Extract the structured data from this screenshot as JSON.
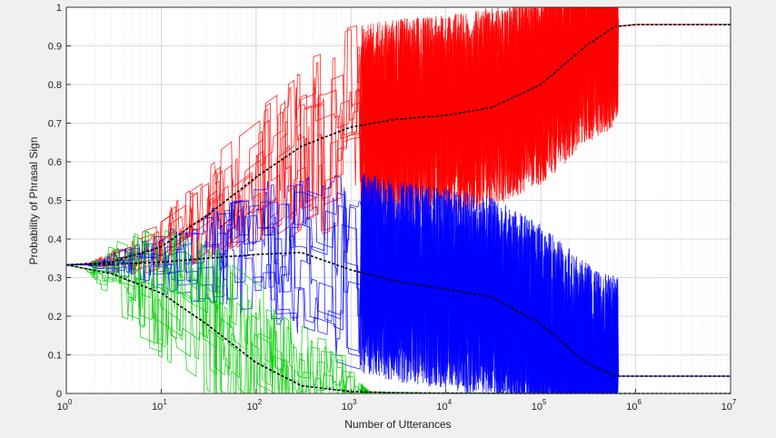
{
  "chart_data": {
    "type": "line",
    "title": "",
    "xlabel": "Number of Utterances",
    "ylabel": "Probability of Phrasal Sign",
    "xscale": "log",
    "xlim": [
      1,
      10000000
    ],
    "ylim": [
      0,
      1
    ],
    "grid": true,
    "legend": "none",
    "x_ticks": [
      {
        "base": "10",
        "exp": "0"
      },
      {
        "base": "10",
        "exp": "1"
      },
      {
        "base": "10",
        "exp": "2"
      },
      {
        "base": "10",
        "exp": "3"
      },
      {
        "base": "10",
        "exp": "4"
      },
      {
        "base": "10",
        "exp": "5"
      },
      {
        "base": "10",
        "exp": "6"
      },
      {
        "base": "10",
        "exp": "7"
      }
    ],
    "y_ticks": [
      "0",
      "0.1",
      "0.2",
      "0.3",
      "0.4",
      "0.5",
      "0.6",
      "0.7",
      "0.8",
      "0.9",
      "1"
    ],
    "series": [
      {
        "color": "#ff0000",
        "role": "mean",
        "x": [
          1,
          3,
          10,
          30,
          100,
          300,
          1000,
          3000,
          10000,
          30000,
          100000,
          300000,
          600000,
          1000000,
          10000000
        ],
        "y": [
          0.333,
          0.34,
          0.38,
          0.46,
          0.56,
          0.64,
          0.69,
          0.71,
          0.72,
          0.74,
          0.8,
          0.9,
          0.95,
          0.955,
          0.955
        ]
      },
      {
        "color": "#0000ff",
        "role": "mean",
        "x": [
          1,
          3,
          10,
          30,
          100,
          300,
          1000,
          3000,
          10000,
          30000,
          100000,
          300000,
          600000,
          1000000,
          10000000
        ],
        "y": [
          0.333,
          0.335,
          0.34,
          0.35,
          0.36,
          0.365,
          0.32,
          0.29,
          0.27,
          0.25,
          0.18,
          0.08,
          0.045,
          0.045,
          0.045
        ]
      },
      {
        "color": "#00cc00",
        "role": "mean",
        "x": [
          1,
          3,
          10,
          30,
          100,
          300,
          1000,
          3000,
          10000,
          100000,
          1000000,
          10000000
        ],
        "y": [
          0.333,
          0.31,
          0.26,
          0.18,
          0.08,
          0.02,
          0.005,
          0.002,
          0.001,
          0.0,
          0.0,
          0.0
        ]
      }
    ]
  }
}
